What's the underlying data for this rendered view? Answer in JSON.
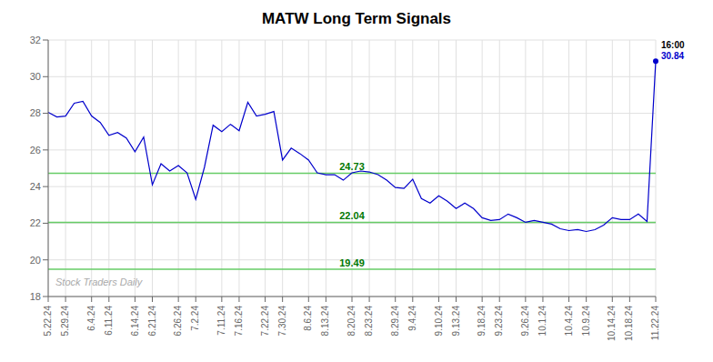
{
  "chart_data": {
    "type": "line",
    "title": "MATW Long Term Signals",
    "color": "#0000cc",
    "grid": true,
    "ylim": [
      18,
      32
    ],
    "yticks": [
      18,
      20,
      22,
      24,
      26,
      28,
      30,
      32
    ],
    "categories": [
      "5.22.24",
      null,
      "5.29.24",
      null,
      null,
      "6.4.24",
      null,
      "6.11.24",
      null,
      null,
      "6.14.24",
      null,
      "6.21.24",
      null,
      null,
      "6.26.24",
      null,
      "7.2.24",
      null,
      null,
      "7.11.24",
      null,
      "7.16.24",
      null,
      null,
      "7.22.24",
      null,
      "7.30.24",
      null,
      null,
      "8.6.24",
      null,
      "8.13.24",
      null,
      null,
      "8.20.24",
      null,
      "8.23.24",
      null,
      null,
      "8.29.24",
      null,
      "9.4.24",
      null,
      null,
      "9.10.24",
      null,
      "9.13.24",
      null,
      null,
      "9.18.24",
      null,
      "9.23.24",
      null,
      null,
      "9.26.24",
      null,
      "10.1.24",
      null,
      null,
      "10.4.24",
      null,
      "10.9.24",
      null,
      null,
      "10.14.24",
      null,
      "10.18.24",
      null,
      null,
      "11.22.24"
    ],
    "values": [
      28.05,
      27.8,
      27.85,
      28.55,
      28.65,
      27.85,
      27.5,
      26.8,
      26.95,
      26.65,
      25.9,
      26.7,
      24.1,
      25.25,
      24.85,
      25.15,
      24.75,
      23.3,
      25.05,
      27.35,
      27.0,
      27.4,
      27.05,
      28.6,
      27.85,
      27.95,
      28.1,
      25.45,
      26.1,
      25.8,
      25.45,
      24.75,
      24.65,
      24.65,
      24.35,
      24.75,
      24.85,
      24.8,
      24.65,
      24.35,
      23.95,
      23.9,
      24.4,
      23.35,
      23.1,
      23.5,
      23.2,
      22.8,
      23.1,
      22.8,
      22.3,
      22.15,
      22.2,
      22.5,
      22.3,
      22.05,
      22.15,
      22.05,
      21.95,
      21.7,
      21.6,
      21.65,
      21.55,
      21.65,
      21.9,
      22.3,
      22.2,
      22.2,
      22.5,
      22.1,
      30.84
    ],
    "hlines": [
      {
        "value": 24.73,
        "label": "24.73",
        "color": "#66cc66",
        "label_color": "#007700"
      },
      {
        "value": 22.04,
        "label": "22.04",
        "color": "#66cc66",
        "label_color": "#007700"
      },
      {
        "value": 19.49,
        "label": "19.49",
        "color": "#66cc66",
        "label_color": "#007700"
      }
    ],
    "annotations": [
      {
        "text": "16:00",
        "color": "#000000"
      },
      {
        "text": "30.84",
        "color": "#0000cc"
      }
    ],
    "watermark": {
      "text": "Stock Traders Daily",
      "color": "#aaaaaa"
    }
  }
}
